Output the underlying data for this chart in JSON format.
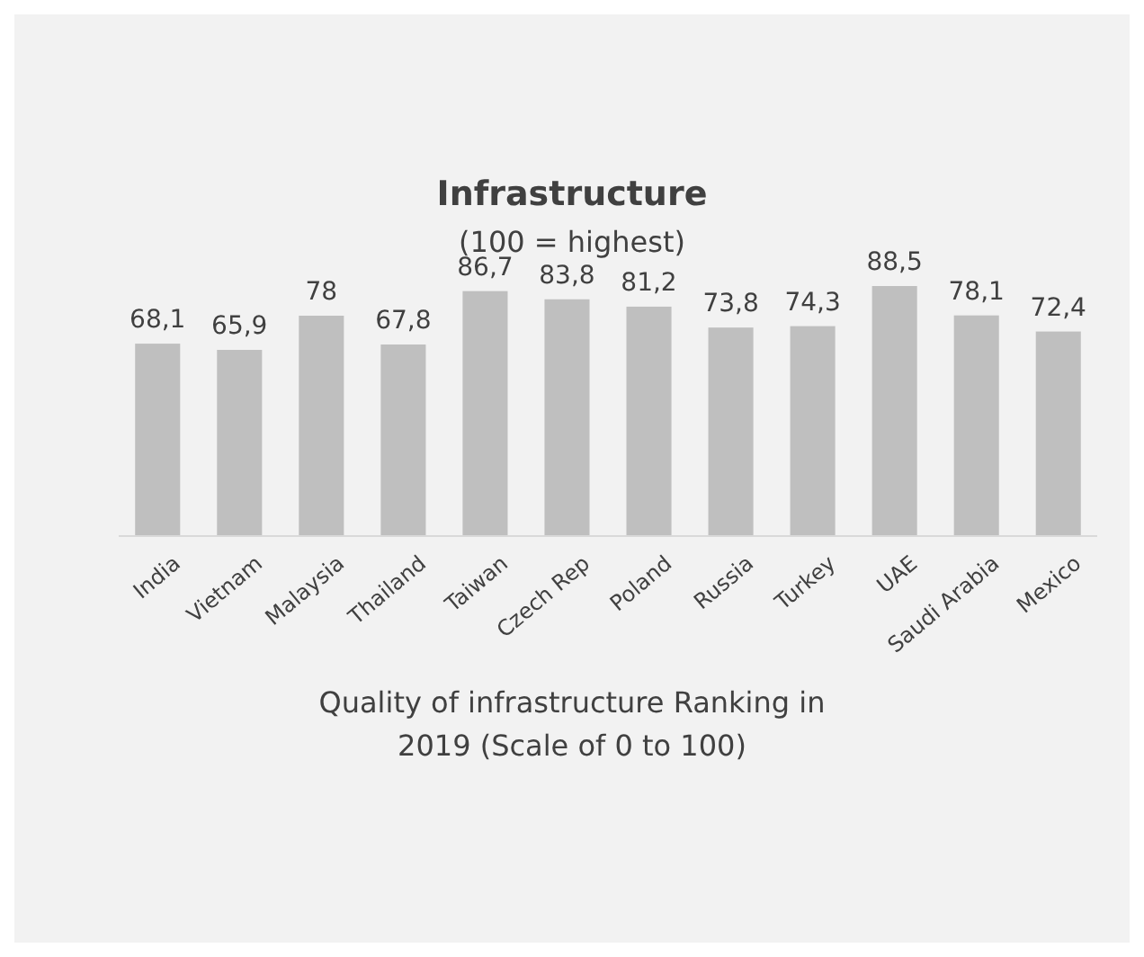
{
  "chart_data": {
    "type": "bar",
    "title": "Infrastructure",
    "subtitle": "(100 = highest)",
    "categories": [
      "India",
      "Vietnam",
      "Malaysia",
      "Thailand",
      "Taiwan",
      "Czech Rep",
      "Poland",
      "Russia",
      "Turkey",
      "UAE",
      "Saudi Arabia",
      "Mexico"
    ],
    "values": [
      68.1,
      65.9,
      78,
      67.8,
      86.7,
      83.8,
      81.2,
      73.8,
      74.3,
      88.5,
      78.1,
      72.4
    ],
    "value_labels": [
      "68,1",
      "65,9",
      "78",
      "67,8",
      "86,7",
      "83,8",
      "81,2",
      "73,8",
      "74,3",
      "88,5",
      "78,1",
      "72,4"
    ],
    "color": "#bfbfbf",
    "annotations": [
      "Quality of infrastructure Ranking in",
      "2019 (Scale of 0 to 100)"
    ]
  }
}
